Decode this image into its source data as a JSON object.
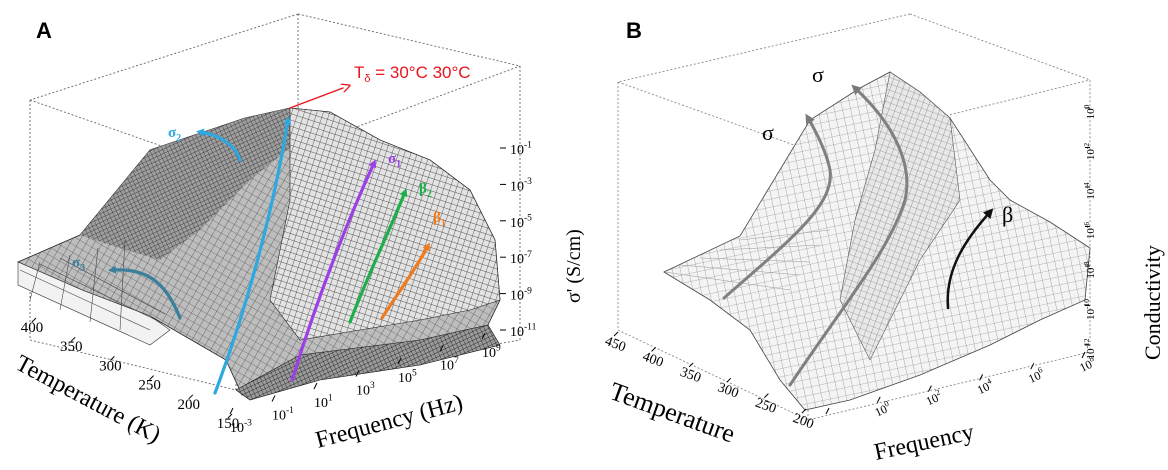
{
  "chart_data": [
    {
      "type": "surface",
      "panel_label": "A",
      "xlabel": "Frequency (Hz)",
      "ylabel": "Temperature (K)",
      "zlabel": "σ' (S/cm)",
      "x_ticks": [
        {
          "base": "10",
          "exp": "-3"
        },
        {
          "base": "10",
          "exp": "-1"
        },
        {
          "base": "10",
          "exp": "1"
        },
        {
          "base": "10",
          "exp": "3"
        },
        {
          "base": "10",
          "exp": "5"
        },
        {
          "base": "10",
          "exp": "7"
        },
        {
          "base": "10",
          "exp": "9"
        }
      ],
      "y_ticks": [
        "150",
        "200",
        "250",
        "300",
        "350",
        "400"
      ],
      "z_ticks": [
        {
          "base": "10",
          "exp": "-11"
        },
        {
          "base": "10",
          "exp": "-9"
        },
        {
          "base": "10",
          "exp": "-7"
        },
        {
          "base": "10",
          "exp": "-5"
        },
        {
          "base": "10",
          "exp": "-3"
        },
        {
          "base": "10",
          "exp": "-1"
        }
      ],
      "annotation": {
        "main": "T",
        "sub": "δ",
        "rest": " = 30°C 30°C",
        "color": "#e8141c"
      },
      "arrows": [
        {
          "base": "σ",
          "sub": "2",
          "color": "#2da8e0"
        },
        {
          "base": "σ",
          "sub": "3",
          "color": "#3a7f9c"
        },
        {
          "base": "σ",
          "sub": "1",
          "color": "#9c3fe6"
        },
        {
          "base": "β",
          "sub": "2",
          "color": "#1fae4b"
        },
        {
          "base": "β",
          "sub": "1",
          "color": "#ef7b1e"
        }
      ]
    },
    {
      "type": "surface",
      "panel_label": "B",
      "xlabel": "Frequency",
      "ylabel": "Temperature",
      "zlabel": "Conductivity",
      "x_ticks": [
        {
          "base": "",
          "exp": ""
        },
        {
          "base": "10",
          "exp": "0"
        },
        {
          "base": "10",
          "exp": "2"
        },
        {
          "base": "10",
          "exp": "4"
        },
        {
          "base": "10",
          "exp": "6"
        },
        {
          "base": "10",
          "exp": "8"
        }
      ],
      "y_ticks": [
        "200",
        "250",
        "300",
        "350",
        "400",
        "450"
      ],
      "z_ticks": [
        {
          "base": "10",
          "exp": "-12"
        },
        {
          "base": "10",
          "exp": "-10"
        },
        {
          "base": "10",
          "exp": "-8"
        },
        {
          "base": "10",
          "exp": "-6"
        },
        {
          "base": "10",
          "exp": "-4"
        },
        {
          "base": "10",
          "exp": "-2"
        },
        {
          "base": "10",
          "exp": "0"
        }
      ],
      "arrows": [
        {
          "label": "σ",
          "color": "#808080"
        },
        {
          "label": "σ",
          "color": "#808080"
        },
        {
          "label": "β",
          "color": "#111111"
        }
      ]
    }
  ]
}
